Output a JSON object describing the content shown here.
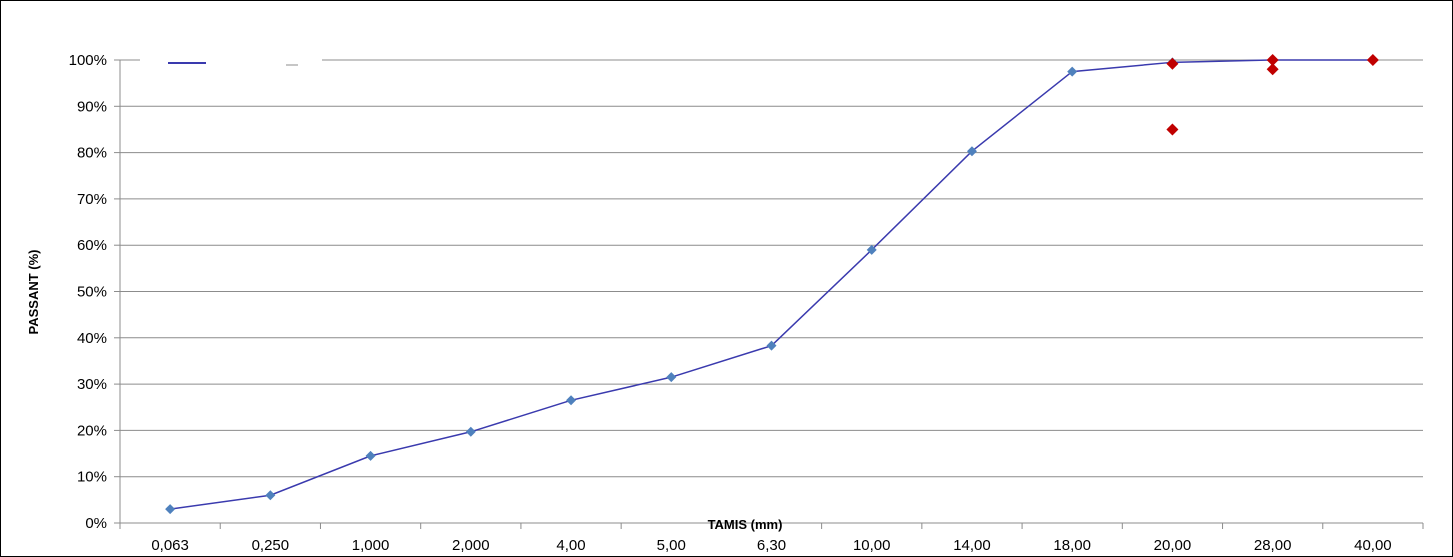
{
  "chart_data": {
    "type": "line",
    "title": "",
    "xlabel": "TAMIS (mm)",
    "ylabel": "PASSANT (%)",
    "categories": [
      "0,063",
      "0,250",
      "1,000",
      "2,000",
      "4,00",
      "5,00",
      "6,30",
      "10,00",
      "14,00",
      "18,00",
      "20,00",
      "28,00",
      "40,00"
    ],
    "ylim": [
      0,
      100
    ],
    "y_ticks": [
      "0%",
      "10%",
      "20%",
      "30%",
      "40%",
      "50%",
      "60%",
      "70%",
      "80%",
      "90%",
      "100%"
    ],
    "grid": true,
    "legend": "top-left",
    "series": [
      {
        "kind": "line",
        "color": "#3a3aae",
        "marker_color": "#4f81bd",
        "values": [
          3,
          6,
          14.5,
          19.7,
          26.5,
          31.5,
          38.3,
          59,
          80.3,
          97.5,
          99.5,
          100,
          100
        ]
      },
      {
        "kind": "scatter",
        "color": "#c00000",
        "points": [
          {
            "x": "20,00",
            "y": 99.2
          },
          {
            "x": "20,00",
            "y": 85
          },
          {
            "x": "28,00",
            "y": 100
          },
          {
            "x": "28,00",
            "y": 98
          },
          {
            "x": "40,00",
            "y": 100
          }
        ]
      }
    ]
  }
}
